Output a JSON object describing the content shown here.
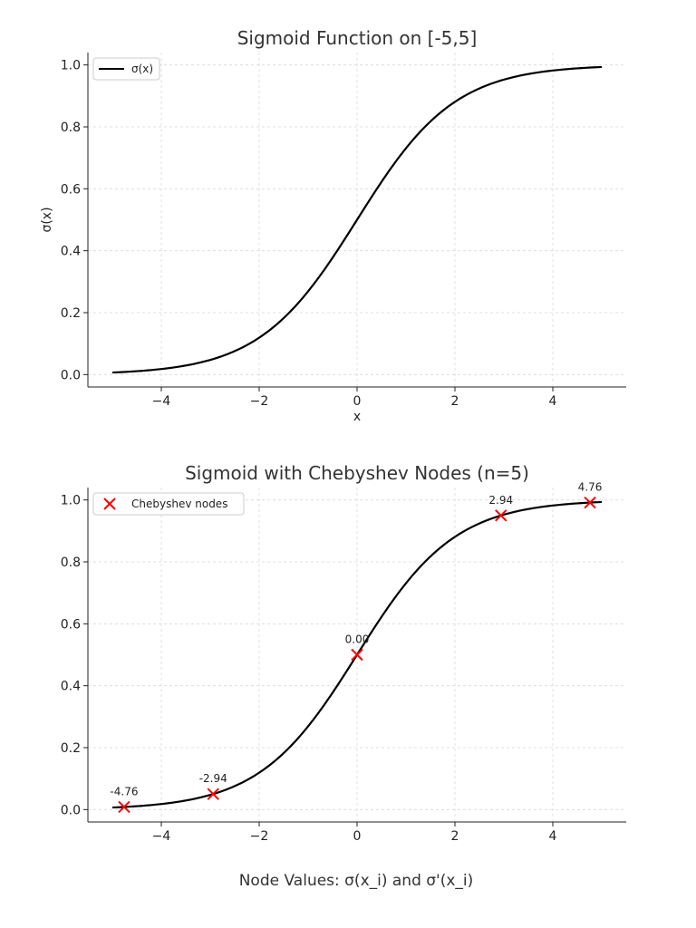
{
  "chart_data": [
    {
      "type": "line",
      "title": "Sigmoid Function on [-5,5]",
      "xlabel": "x",
      "ylabel": "σ(x)",
      "xlim": [
        -5.5,
        5.5
      ],
      "ylim": [
        -0.04,
        1.04
      ],
      "xticks": [
        -4,
        -2,
        0,
        2,
        4
      ],
      "xtick_labels": [
        "−4",
        "−2",
        "0",
        "2",
        "4"
      ],
      "yticks": [
        0.0,
        0.2,
        0.4,
        0.6,
        0.8,
        1.0
      ],
      "ytick_labels": [
        "0.0",
        "0.2",
        "0.4",
        "0.6",
        "0.8",
        "1.0"
      ],
      "grid": true,
      "legend": {
        "placement": "top-left",
        "entries": [
          "σ(x)"
        ]
      },
      "series": [
        {
          "name": "σ(x)",
          "function": "sigmoid",
          "domain": [
            -5,
            5
          ],
          "color": "#000000",
          "style": "line"
        }
      ]
    },
    {
      "type": "scatter",
      "title": "Sigmoid with Chebyshev Nodes (n=5)",
      "xlabel": "",
      "ylabel": "",
      "xlim": [
        -5.5,
        5.5
      ],
      "ylim": [
        -0.04,
        1.04
      ],
      "xticks": [
        -4,
        -2,
        0,
        2,
        4
      ],
      "xtick_labels": [
        "−4",
        "−2",
        "0",
        "2",
        "4"
      ],
      "yticks": [
        0.0,
        0.2,
        0.4,
        0.6,
        0.8,
        1.0
      ],
      "ytick_labels": [
        "0.0",
        "0.2",
        "0.4",
        "0.6",
        "0.8",
        "1.0"
      ],
      "grid": true,
      "legend": {
        "placement": "top-left",
        "entries": [
          "Chebyshev nodes"
        ]
      },
      "series": [
        {
          "function": "sigmoid",
          "domain": [
            -5,
            5
          ],
          "color": "#000000",
          "style": "line"
        },
        {
          "name": "Chebyshev nodes",
          "color": "#ff0000",
          "marker": "x",
          "x": [
            -4.76,
            -2.94,
            0.0,
            2.94,
            4.76
          ],
          "y": [
            0.0085,
            0.0502,
            0.5,
            0.9498,
            0.9915
          ],
          "labels": [
            "-4.76",
            "-2.94",
            "0.00",
            "2.94",
            "4.76"
          ]
        }
      ]
    }
  ],
  "footer": {
    "text": "Node Values: σ(x_i) and σ'(x_i)"
  }
}
